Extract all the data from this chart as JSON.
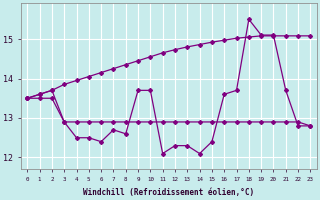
{
  "xlabel": "Windchill (Refroidissement éolien,°C)",
  "background_color": "#c8ecec",
  "grid_color": "#ffffff",
  "line_color": "#800080",
  "x_hours": [
    0,
    1,
    2,
    3,
    4,
    5,
    6,
    7,
    8,
    9,
    10,
    11,
    12,
    13,
    14,
    15,
    16,
    17,
    18,
    19,
    20,
    21,
    22,
    23
  ],
  "series1": [
    13.5,
    13.6,
    13.7,
    12.9,
    12.5,
    12.5,
    12.4,
    12.7,
    12.6,
    13.7,
    13.7,
    12.1,
    12.3,
    12.3,
    12.1,
    12.4,
    13.6,
    13.7,
    15.5,
    15.1,
    15.1,
    13.7,
    12.8,
    12.8
  ],
  "series2": [
    13.5,
    13.5,
    13.5,
    12.9,
    12.9,
    12.9,
    12.9,
    12.9,
    12.9,
    12.9,
    12.9,
    12.9,
    12.9,
    12.9,
    12.9,
    12.9,
    12.9,
    12.9,
    12.9,
    12.9,
    12.9,
    12.9,
    12.9,
    12.8
  ],
  "series3": [
    13.5,
    13.6,
    13.7,
    13.85,
    13.95,
    14.05,
    14.15,
    14.25,
    14.35,
    14.45,
    14.55,
    14.65,
    14.73,
    14.8,
    14.86,
    14.92,
    14.97,
    15.02,
    15.05,
    15.08,
    15.08,
    15.08,
    15.08,
    15.08
  ],
  "ylim": [
    11.7,
    15.9
  ],
  "yticks": [
    12,
    13,
    14,
    15
  ],
  "xticks": [
    0,
    1,
    2,
    3,
    4,
    5,
    6,
    7,
    8,
    9,
    10,
    11,
    12,
    13,
    14,
    15,
    16,
    17,
    18,
    19,
    20,
    21,
    22,
    23
  ]
}
